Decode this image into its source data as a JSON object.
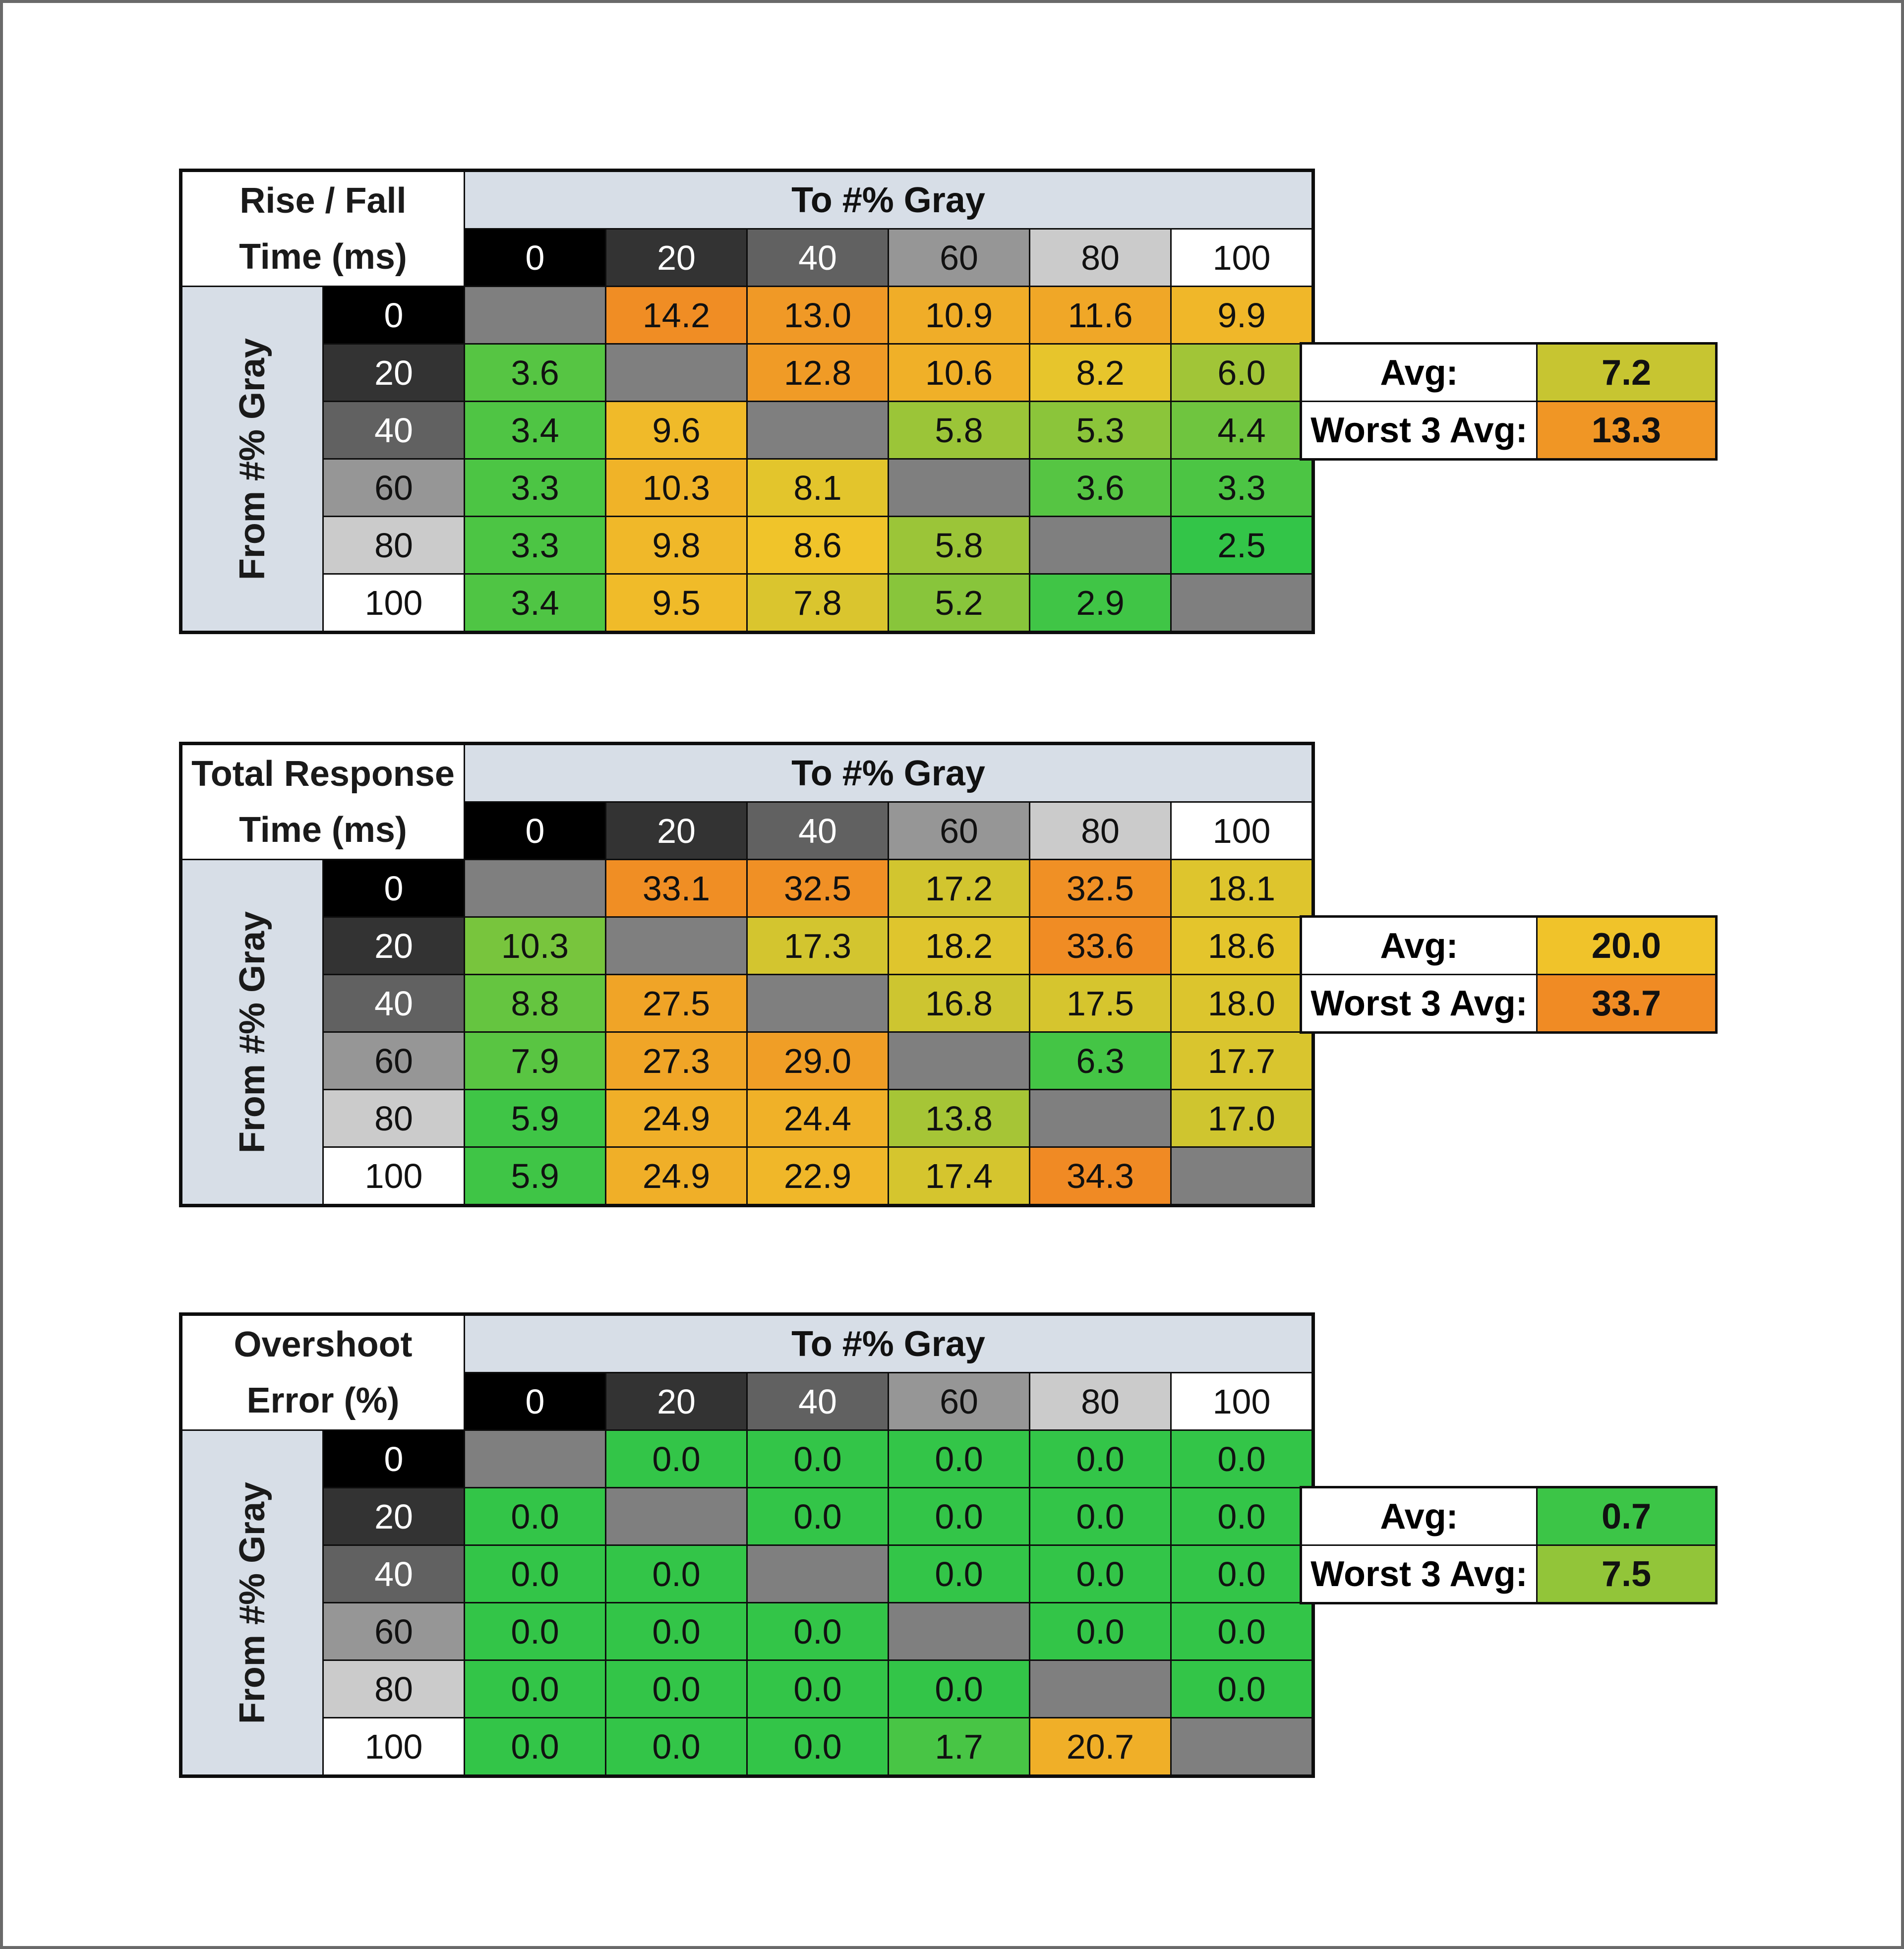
{
  "chart_data": [
    {
      "type": "heatmap",
      "title_lines": [
        "Rise / Fall",
        "Time (ms)"
      ],
      "xlabel": "To #% Gray",
      "ylabel": "From #% Gray",
      "x_categories": [
        "0",
        "20",
        "40",
        "60",
        "80",
        "100"
      ],
      "y_categories": [
        "0",
        "20",
        "40",
        "60",
        "80",
        "100"
      ],
      "values": [
        [
          null,
          14.2,
          13.0,
          10.9,
          11.6,
          9.9
        ],
        [
          3.6,
          null,
          12.8,
          10.6,
          8.2,
          6.0
        ],
        [
          3.4,
          9.6,
          null,
          5.8,
          5.3,
          4.4
        ],
        [
          3.3,
          10.3,
          8.1,
          null,
          3.6,
          3.3
        ],
        [
          3.3,
          9.8,
          8.6,
          5.8,
          null,
          2.5
        ],
        [
          3.4,
          9.5,
          7.8,
          5.2,
          2.9,
          null
        ]
      ],
      "summary": {
        "avg_label": "Avg:",
        "avg_value": "7.2",
        "worst_label": "Worst 3 Avg:",
        "worst_value": "13.3"
      },
      "color_scale": {
        "low": 2.5,
        "high": 14.5
      }
    },
    {
      "type": "heatmap",
      "title_lines": [
        "Total Response",
        "Time (ms)"
      ],
      "xlabel": "To #% Gray",
      "ylabel": "From #% Gray",
      "x_categories": [
        "0",
        "20",
        "40",
        "60",
        "80",
        "100"
      ],
      "y_categories": [
        "0",
        "20",
        "40",
        "60",
        "80",
        "100"
      ],
      "values": [
        [
          null,
          33.1,
          32.5,
          17.2,
          32.5,
          18.1
        ],
        [
          10.3,
          null,
          17.3,
          18.2,
          33.6,
          18.6
        ],
        [
          8.8,
          27.5,
          null,
          16.8,
          17.5,
          18.0
        ],
        [
          7.9,
          27.3,
          29.0,
          null,
          6.3,
          17.7
        ],
        [
          5.9,
          24.9,
          24.4,
          13.8,
          null,
          17.0
        ],
        [
          5.9,
          24.9,
          22.9,
          17.4,
          34.3,
          null
        ]
      ],
      "summary": {
        "avg_label": "Avg:",
        "avg_value": "20.0",
        "worst_label": "Worst 3 Avg:",
        "worst_value": "33.7"
      },
      "color_scale": {
        "low": 5.0,
        "high": 34.0
      }
    },
    {
      "type": "heatmap",
      "title_lines": [
        "Overshoot",
        "Error (%)"
      ],
      "xlabel": "To #% Gray",
      "ylabel": "From #% Gray",
      "x_categories": [
        "0",
        "20",
        "40",
        "60",
        "80",
        "100"
      ],
      "y_categories": [
        "0",
        "20",
        "40",
        "60",
        "80",
        "100"
      ],
      "values": [
        [
          null,
          0.0,
          0.0,
          0.0,
          0.0,
          0.0
        ],
        [
          0.0,
          null,
          0.0,
          0.0,
          0.0,
          0.0
        ],
        [
          0.0,
          0.0,
          null,
          0.0,
          0.0,
          0.0
        ],
        [
          0.0,
          0.0,
          0.0,
          null,
          0.0,
          0.0
        ],
        [
          0.0,
          0.0,
          0.0,
          0.0,
          null,
          0.0
        ],
        [
          0.0,
          0.0,
          0.0,
          1.7,
          20.7,
          null
        ]
      ],
      "summary": {
        "avg_label": "Avg:",
        "avg_value": "0.7",
        "worst_label": "Worst 3 Avg:",
        "worst_value": "7.5"
      },
      "color_scale": {
        "low": 0.0,
        "high": 30.0
      }
    }
  ],
  "header_shades": {
    "0": "#000000",
    "20": "#333333",
    "40": "#616161",
    "60": "#969696",
    "80": "#cbcbcb",
    "100": "#ffffff"
  },
  "header_text": {
    "0": "#ffffff",
    "20": "#ffffff",
    "40": "#ffffff",
    "60": "#111111",
    "80": "#111111",
    "100": "#111111"
  },
  "colors": {
    "green": "#33c548",
    "yellow": "#f0c52a",
    "orange": "#f08a24",
    "empty": "#7f7f7f",
    "header_band": "#d7dee7"
  }
}
